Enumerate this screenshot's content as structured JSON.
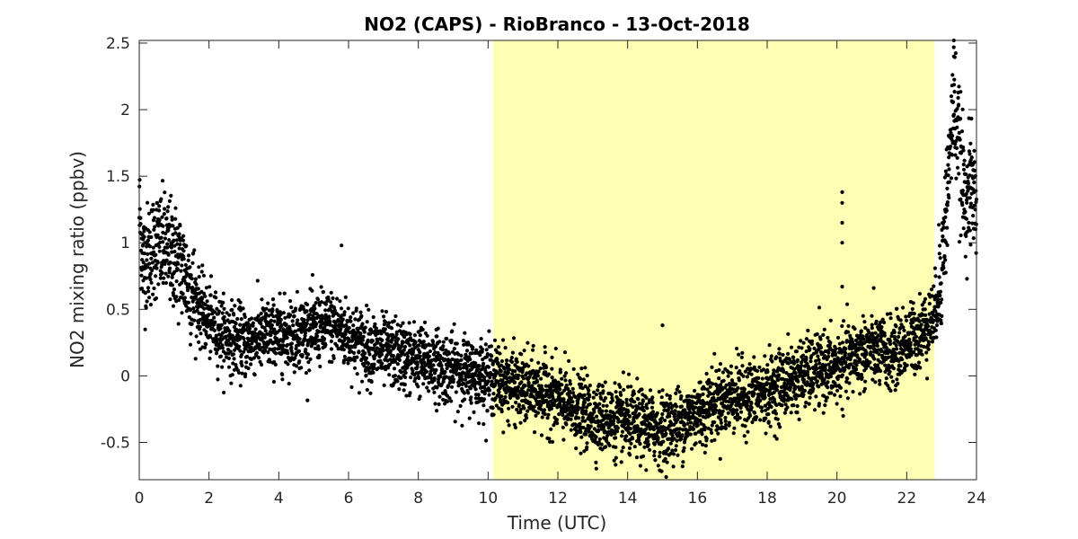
{
  "chart_data": {
    "type": "scatter",
    "title": "NO2 (CAPS) - RioBranco - 13-Oct-2018",
    "xlabel": "Time (UTC)",
    "ylabel": "NO2 mixing ratio (ppbv)",
    "xlim": [
      0,
      24
    ],
    "ylim": [
      -0.78,
      2.52
    ],
    "xticks": [
      0,
      2,
      4,
      6,
      8,
      10,
      12,
      14,
      16,
      18,
      20,
      22,
      24
    ],
    "yticks": [
      -0.5,
      0,
      0.5,
      1,
      1.5,
      2,
      2.5
    ],
    "xtick_labels": [
      "0",
      "2",
      "4",
      "6",
      "8",
      "10",
      "12",
      "14",
      "16",
      "18",
      "20",
      "22",
      "24"
    ],
    "ytick_labels": [
      "-0.5",
      "0",
      "0.5",
      "1",
      "1.5",
      "2",
      "2.5"
    ],
    "grid": false,
    "marker_color": "#000000",
    "shaded_region": {
      "x_start": 10.15,
      "x_end": 22.8,
      "color": "#ffffb3"
    },
    "series": [
      {
        "x": [
          0.0,
          0.1,
          0.25,
          0.5,
          0.75,
          1.0,
          1.25,
          1.5,
          1.75,
          2.0,
          2.5,
          3.0,
          3.5,
          4.0,
          4.5,
          5.0,
          5.5,
          6.0,
          6.5,
          7.0,
          7.5,
          8.0,
          8.5,
          9.0,
          9.5,
          10.0,
          10.5,
          11.0,
          11.5,
          12.0,
          12.5,
          13.0,
          13.5,
          14.0,
          14.5,
          15.0,
          15.5,
          16.0,
          16.5,
          17.0,
          17.5,
          18.0,
          18.5,
          19.0,
          19.5,
          20.0,
          20.5,
          21.0,
          21.5,
          22.0,
          22.5,
          22.8,
          23.0,
          23.2,
          23.35,
          23.5,
          23.65,
          23.8,
          24.0
        ],
        "y": [
          1.25,
          0.85,
          0.9,
          1.0,
          0.95,
          0.9,
          0.8,
          0.65,
          0.5,
          0.4,
          0.3,
          0.25,
          0.3,
          0.3,
          0.32,
          0.35,
          0.38,
          0.3,
          0.22,
          0.18,
          0.15,
          0.12,
          0.08,
          0.05,
          0.02,
          0.0,
          -0.05,
          -0.1,
          -0.12,
          -0.18,
          -0.25,
          -0.3,
          -0.33,
          -0.35,
          -0.37,
          -0.4,
          -0.35,
          -0.28,
          -0.2,
          -0.15,
          -0.15,
          -0.12,
          -0.05,
          0.0,
          0.05,
          0.05,
          0.15,
          0.2,
          0.15,
          0.25,
          0.35,
          0.45,
          0.8,
          1.5,
          2.1,
          1.7,
          1.35,
          1.4,
          1.35
        ],
        "spikes": [
          {
            "x": 20.15,
            "y": [
              1.38,
              1.3,
              1.15,
              1.0,
              0.67
            ]
          },
          {
            "x": 23.35,
            "y": [
              2.52,
              2.4
            ]
          },
          {
            "x": 15.0,
            "y": [
              0.38
            ]
          },
          {
            "x": 5.8,
            "y": [
              0.98
            ]
          }
        ]
      }
    ]
  }
}
